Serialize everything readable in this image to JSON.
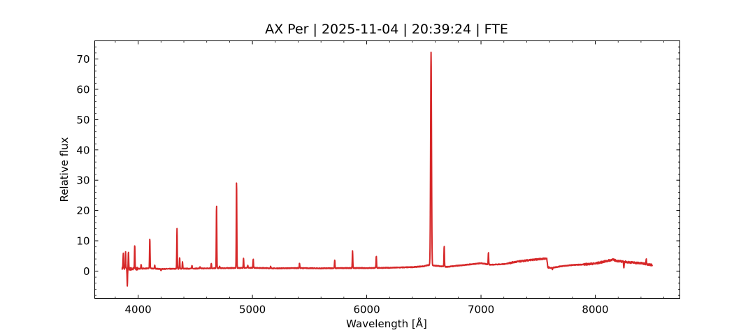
{
  "chart_data": {
    "type": "line",
    "title": "AX Per | 2025-11-04 | 20:39:24 | FTE",
    "xlabel": "Wavelength [Å]",
    "ylabel": "Relative flux",
    "xlim": [
      3620,
      8740
    ],
    "ylim": [
      -9,
      76
    ],
    "x_ticks": [
      4000,
      5000,
      6000,
      7000,
      8000
    ],
    "y_ticks": [
      0,
      10,
      20,
      30,
      40,
      50,
      60,
      70
    ],
    "grid": false,
    "series": [
      {
        "color": "#d62728",
        "continuum": [
          [
            3860,
            0.9
          ],
          [
            3950,
            0.7
          ],
          [
            4000,
            0.8
          ],
          [
            4100,
            0.9
          ],
          [
            4200,
            0.7
          ],
          [
            4400,
            0.8
          ],
          [
            4600,
            0.9
          ],
          [
            4800,
            1.0
          ],
          [
            5000,
            1.1
          ],
          [
            5200,
            0.9
          ],
          [
            5400,
            1.0
          ],
          [
            5600,
            0.9
          ],
          [
            5800,
            1.0
          ],
          [
            6000,
            1.0
          ],
          [
            6200,
            1.1
          ],
          [
            6400,
            1.3
          ],
          [
            6500,
            1.6
          ],
          [
            6540,
            2.0
          ],
          [
            6700,
            1.4
          ],
          [
            6800,
            1.8
          ],
          [
            6900,
            2.2
          ],
          [
            7000,
            2.6
          ],
          [
            7080,
            2.1
          ],
          [
            7200,
            2.3
          ],
          [
            7300,
            3.0
          ],
          [
            7400,
            3.5
          ],
          [
            7500,
            3.9
          ],
          [
            7575,
            4.2
          ],
          [
            7585,
            1.3
          ],
          [
            7610,
            1.0
          ],
          [
            7700,
            1.6
          ],
          [
            7800,
            2.0
          ],
          [
            7900,
            2.2
          ],
          [
            8000,
            2.5
          ],
          [
            8100,
            3.3
          ],
          [
            8150,
            3.8
          ],
          [
            8200,
            3.3
          ],
          [
            8300,
            2.9
          ],
          [
            8400,
            2.6
          ],
          [
            8500,
            2.0
          ]
        ],
        "emission_lines": [
          [
            3870,
            5.8
          ],
          [
            3890,
            6.0
          ],
          [
            3915,
            6.5
          ],
          [
            3970,
            8.6
          ],
          [
            4026,
            2.2
          ],
          [
            4102,
            10.8
          ],
          [
            4145,
            2.0
          ],
          [
            4340,
            14.0
          ],
          [
            4363,
            4.4
          ],
          [
            4388,
            3.0
          ],
          [
            4471,
            1.8
          ],
          [
            4541,
            1.4
          ],
          [
            4640,
            2.6
          ],
          [
            4686,
            21.8
          ],
          [
            4713,
            1.6
          ],
          [
            4861,
            29.8
          ],
          [
            4922,
            4.3
          ],
          [
            4959,
            1.8
          ],
          [
            5007,
            4.0
          ],
          [
            5159,
            1.5
          ],
          [
            5412,
            2.6
          ],
          [
            5720,
            3.6
          ],
          [
            5876,
            6.7
          ],
          [
            6084,
            5.0
          ],
          [
            6563,
            72.2
          ],
          [
            6678,
            8.2
          ],
          [
            7065,
            6.1
          ],
          [
            8446,
            4.2
          ]
        ],
        "absorption_lines": [
          [
            3905,
            -4.8
          ],
          [
            4200,
            0.1
          ],
          [
            7625,
            0.6
          ],
          [
            8250,
            1.2
          ]
        ]
      }
    ]
  }
}
